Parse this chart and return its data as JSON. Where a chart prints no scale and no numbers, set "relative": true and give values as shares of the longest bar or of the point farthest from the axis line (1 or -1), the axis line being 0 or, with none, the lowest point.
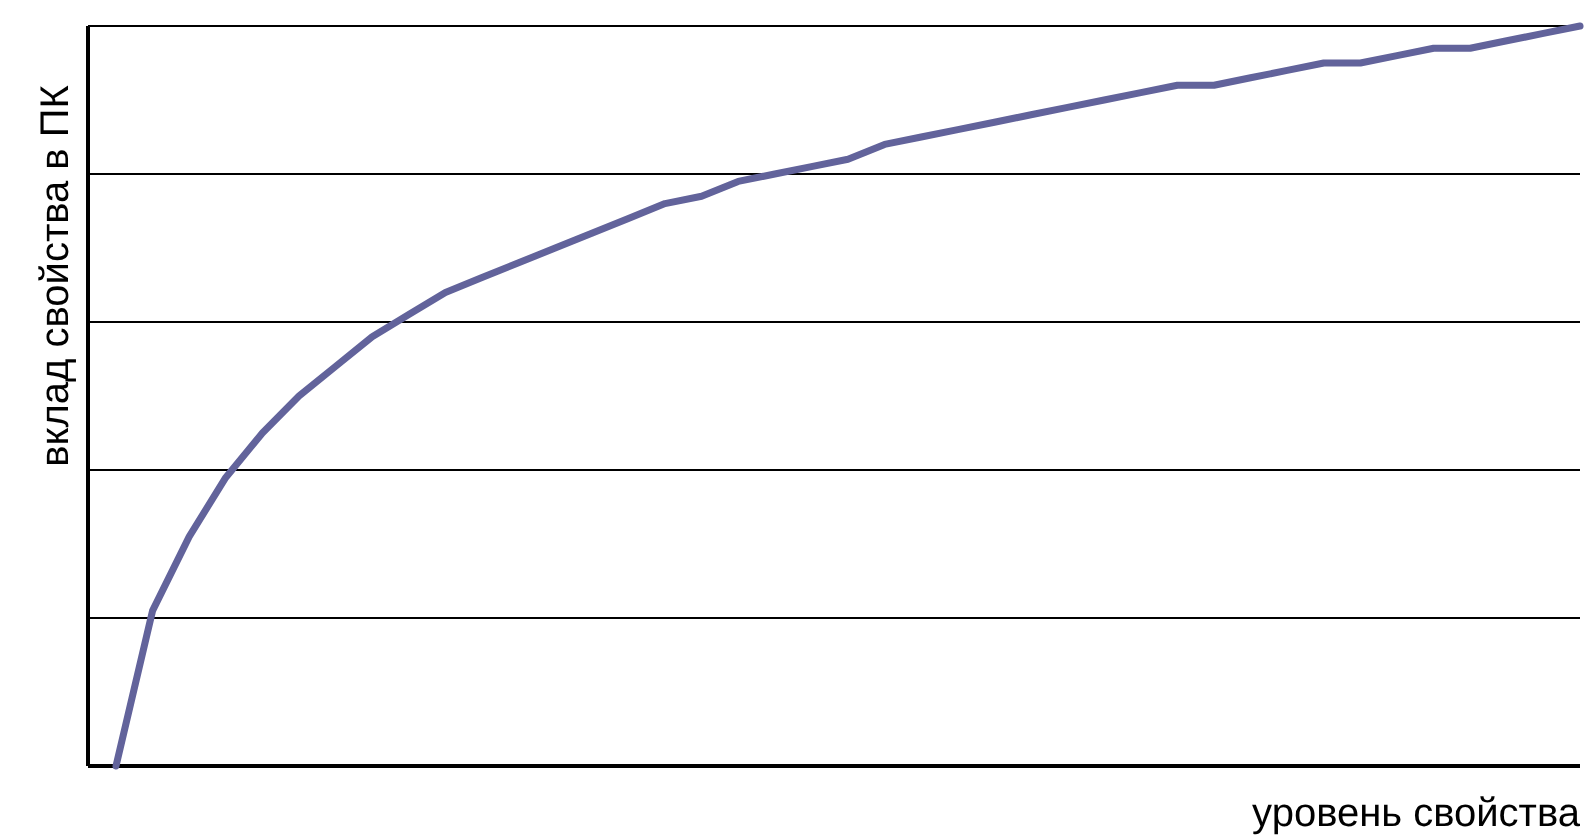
{
  "chart_data": {
    "type": "line",
    "relative": true,
    "xlabel": "уровень свойства",
    "ylabel": "вклад свойства в ПК",
    "grid": "y",
    "marker": "none",
    "line_style": "solid",
    "categories": [
      null,
      null,
      null,
      null,
      null,
      null,
      null,
      null,
      null,
      null,
      null,
      null,
      null,
      null,
      null,
      null,
      null,
      null,
      null,
      null,
      null,
      null,
      null,
      null,
      null,
      null,
      null,
      null,
      null,
      null,
      null,
      null,
      null,
      null,
      null,
      null,
      null,
      null,
      null,
      null,
      null
    ],
    "series": [
      {
        "color": "#62639b",
        "values": [
          0,
          0.21,
          0.31,
          0.39,
          0.45,
          0.5,
          0.54,
          0.58,
          0.61,
          0.64,
          0.66,
          0.68,
          0.7,
          0.72,
          0.74,
          0.76,
          0.77,
          0.79,
          0.8,
          0.81,
          0.82,
          0.84,
          0.85,
          0.86,
          0.87,
          0.88,
          0.89,
          0.9,
          0.91,
          0.92,
          0.92,
          0.93,
          0.94,
          0.95,
          0.95,
          0.96,
          0.97,
          0.97,
          0.98,
          0.99,
          1
        ]
      }
    ]
  }
}
